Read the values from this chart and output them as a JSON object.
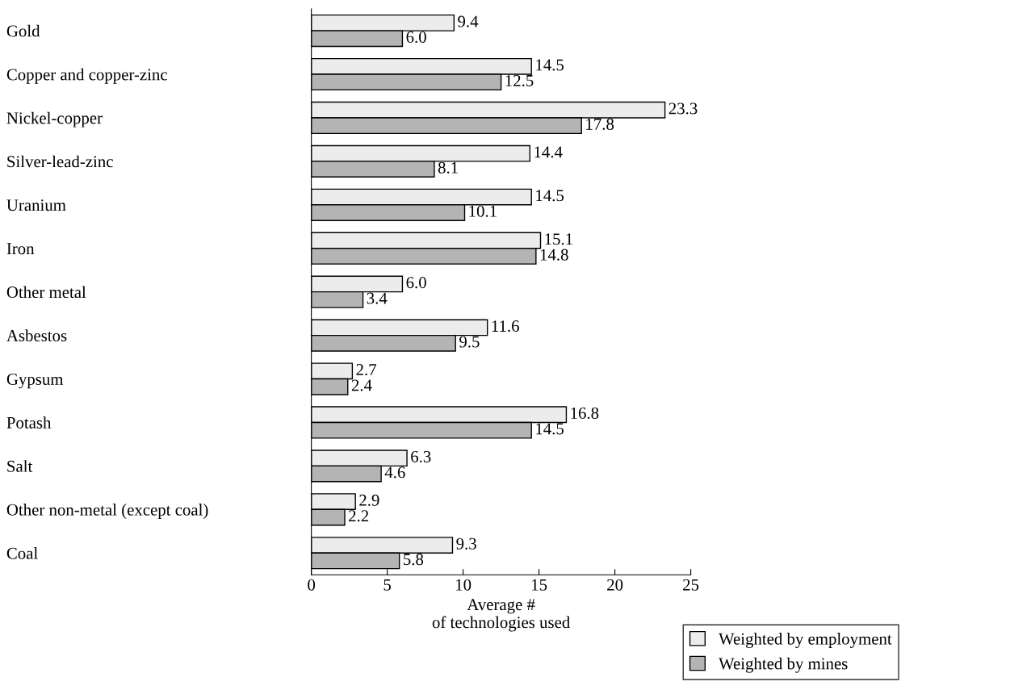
{
  "chart_data": {
    "type": "bar",
    "orientation": "horizontal",
    "xlabel": "Average #\nof technologies used",
    "categories": [
      "Gold",
      "Copper and copper-zinc",
      "Nickel-copper",
      "Silver-lead-zinc",
      "Uranium",
      "Iron",
      "Other metal",
      "Asbestos",
      "Gypsum",
      "Potash",
      "Salt",
      "Other non-metal (except coal)",
      "Coal"
    ],
    "series": [
      {
        "name": "Weighted by employment",
        "color": "#ececec",
        "values": [
          9.4,
          14.5,
          23.3,
          14.4,
          14.5,
          15.1,
          6.0,
          11.6,
          2.7,
          16.8,
          6.3,
          2.9,
          9.3
        ],
        "value_labels": [
          "9.4",
          "14.5",
          "23.3",
          "14.4",
          "14.5",
          "15.1",
          "6.0",
          "11.6",
          "2.7",
          "16.8",
          "6.3",
          "2.9",
          "9.3"
        ]
      },
      {
        "name": "Weighted by mines",
        "color": "#b4b4b4",
        "values": [
          6.0,
          12.5,
          17.8,
          8.1,
          10.1,
          14.8,
          3.4,
          9.5,
          2.4,
          14.5,
          4.6,
          2.2,
          5.8
        ],
        "value_labels": [
          "6.0",
          "12.5",
          "17.8",
          "8.1",
          "10.1",
          "14.8",
          "3.4",
          "9.5",
          "2.4",
          "14.5",
          "4.6",
          "2.2",
          "5.8"
        ]
      }
    ],
    "xlim": [
      0,
      25
    ],
    "xticks": [
      0,
      5,
      10,
      15,
      20,
      25
    ],
    "grid": false,
    "legend": "bottom right"
  }
}
